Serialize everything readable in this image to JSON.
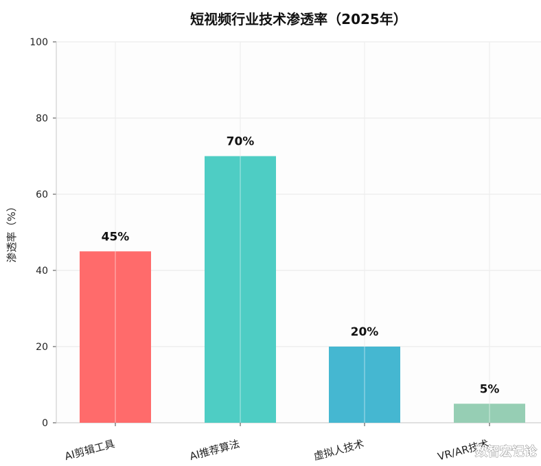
{
  "chart_data": {
    "type": "bar",
    "title": "短视频行业技术渗透率（2025年）",
    "xlabel": "",
    "ylabel": "渗透率（%）",
    "categories": [
      "AI剪辑工具",
      "AI推荐算法",
      "虚拟人技术",
      "VR/AR技术"
    ],
    "values": [
      45,
      70,
      20,
      5
    ],
    "value_labels": [
      "45%",
      "70%",
      "20%",
      "5%"
    ],
    "ylim": [
      0,
      100
    ],
    "yticks": [
      0,
      20,
      40,
      60,
      80,
      100
    ],
    "grid": true,
    "bar_colors": [
      "#FF6B6B",
      "#4ECDC4",
      "#45B7D1",
      "#96CEB4"
    ]
  },
  "watermark": "数智宏记论"
}
